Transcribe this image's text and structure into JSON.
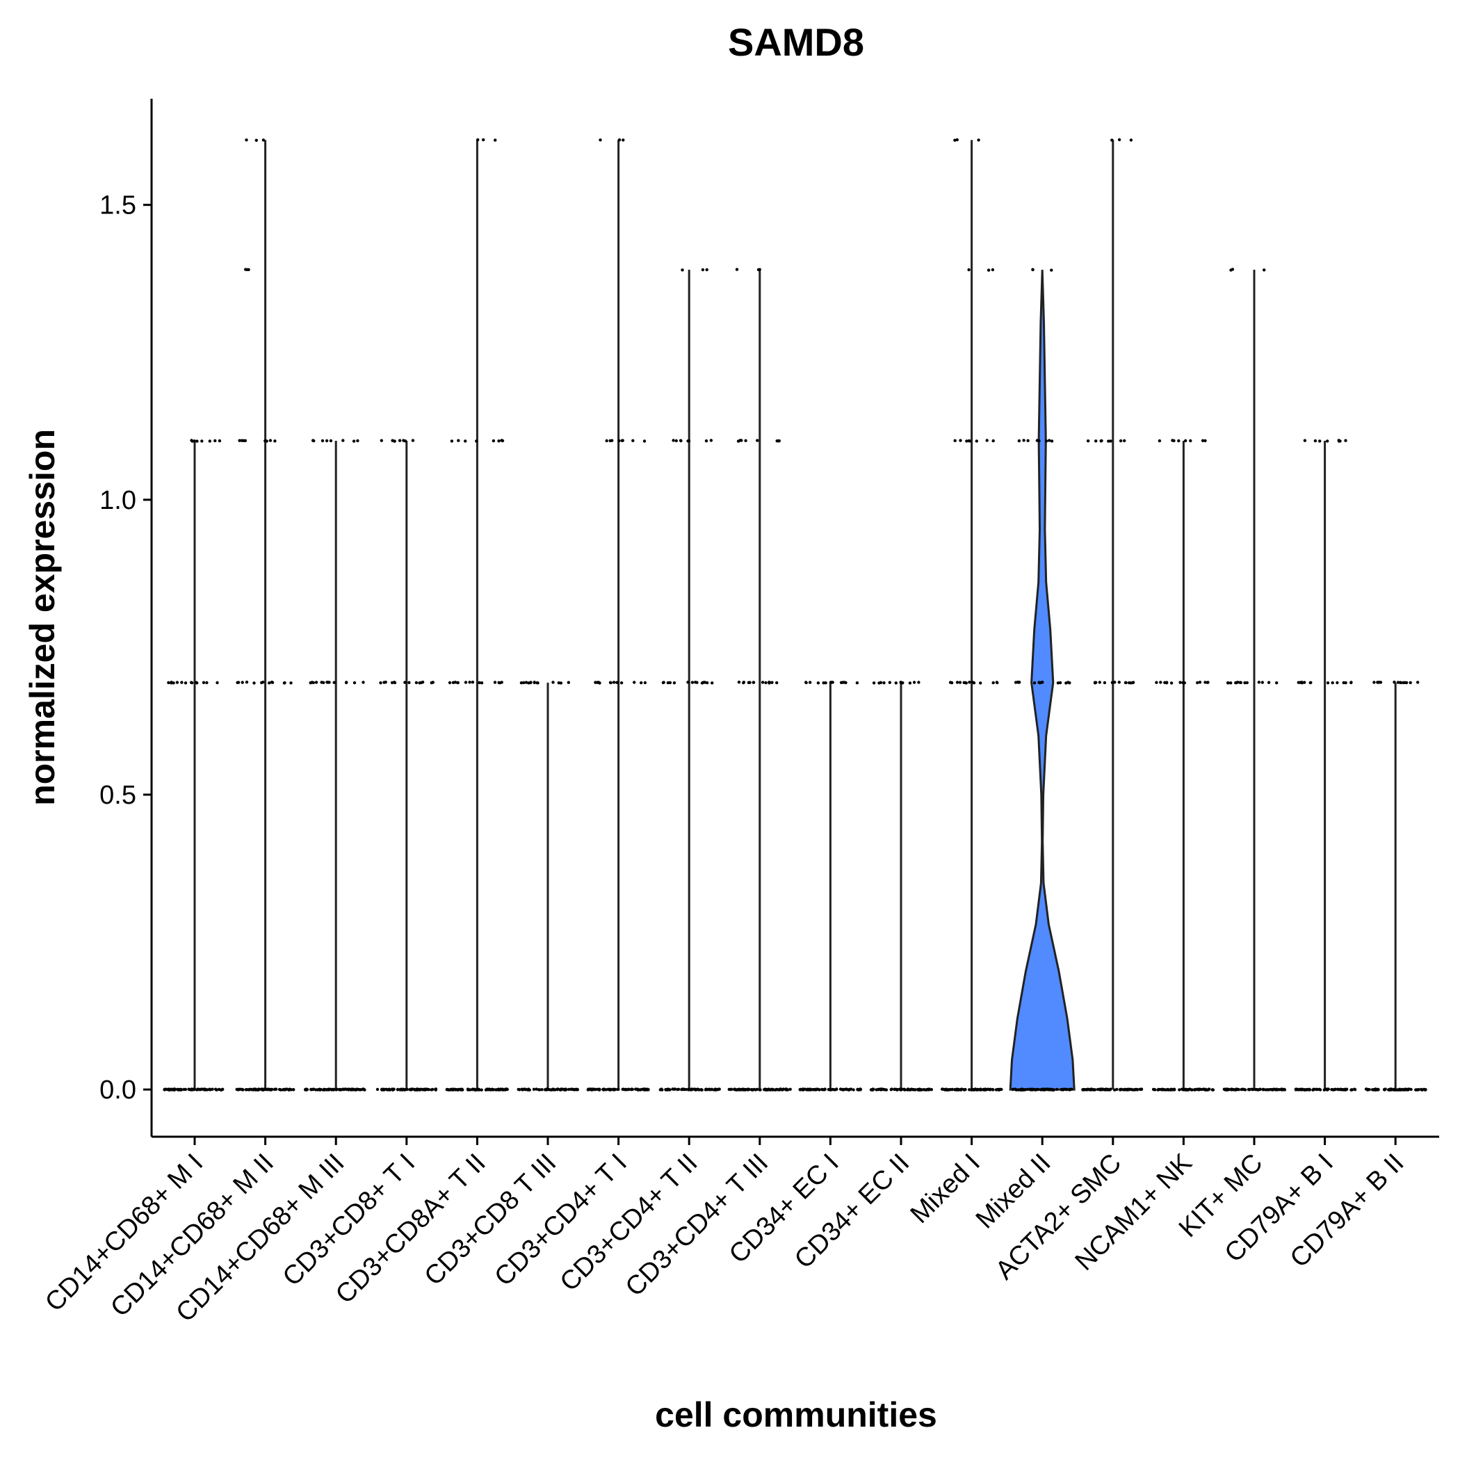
{
  "chart_data": {
    "type": "violin",
    "title": "SAMD8",
    "xlabel": "cell communities",
    "ylabel": "normalized expression",
    "ylim": [
      -0.08,
      1.68
    ],
    "y_ticks": [
      "0.0",
      "0.5",
      "1.0",
      "1.5"
    ],
    "y_tick_values": [
      0,
      0.5,
      1.0,
      1.5
    ],
    "grid": false,
    "legend": "none",
    "fill_color": "#518BFF",
    "categories": [
      "CD14+CD68+ M I",
      "CD14+CD68+ M II",
      "CD14+CD68+ M III",
      "CD3+CD8+ T I",
      "CD3+CD8A+ T II",
      "CD3+CD8 T III",
      "CD3+CD4+ T I",
      "CD3+CD4+ T II",
      "CD3+CD4+ T III",
      "CD34+ EC I",
      "CD34+ EC II",
      "Mixed I",
      "Mixed II",
      "ACTA2+ SMC",
      "NCAM1+ NK",
      "KIT+ MC",
      "CD79A+ B I",
      "CD79A+ B II"
    ],
    "violins": [
      {
        "category": "CD14+CD68+ M I",
        "max": 1.1,
        "levels": [
          0,
          0.69,
          1.1
        ]
      },
      {
        "category": "CD14+CD68+ M II",
        "max": 1.61,
        "levels": [
          0,
          0.69,
          1.1,
          1.39,
          1.61
        ]
      },
      {
        "category": "CD14+CD68+ M III",
        "max": 1.1,
        "levels": [
          0,
          0.69,
          1.1
        ]
      },
      {
        "category": "CD3+CD8+ T I",
        "max": 1.1,
        "levels": [
          0,
          0.69,
          1.1
        ]
      },
      {
        "category": "CD3+CD8A+ T II",
        "max": 1.61,
        "levels": [
          0,
          0.69,
          1.1,
          1.61
        ]
      },
      {
        "category": "CD3+CD8 T III",
        "max": 0.69,
        "levels": [
          0,
          0.69
        ]
      },
      {
        "category": "CD3+CD4+ T I",
        "max": 1.61,
        "levels": [
          0,
          0.69,
          1.1,
          1.61
        ]
      },
      {
        "category": "CD3+CD4+ T II",
        "max": 1.39,
        "levels": [
          0,
          0.69,
          1.1,
          1.39
        ]
      },
      {
        "category": "CD3+CD4+ T III",
        "max": 1.39,
        "levels": [
          0,
          0.69,
          1.1,
          1.39
        ]
      },
      {
        "category": "CD34+ EC I",
        "max": 0.69,
        "levels": [
          0,
          0.69
        ]
      },
      {
        "category": "CD34+ EC II",
        "max": 0.69,
        "levels": [
          0,
          0.69
        ]
      },
      {
        "category": "Mixed I",
        "max": 1.61,
        "levels": [
          0,
          0.69,
          1.1,
          1.39,
          1.61
        ]
      },
      {
        "category": "Mixed II",
        "max": 1.39,
        "levels": [
          0,
          0.69,
          1.1,
          1.39
        ]
      },
      {
        "category": "ACTA2+ SMC",
        "max": 1.61,
        "levels": [
          0,
          0.69,
          1.1,
          1.61
        ]
      },
      {
        "category": "NCAM1+ NK",
        "max": 1.1,
        "levels": [
          0,
          0.69,
          1.1
        ]
      },
      {
        "category": "KIT+ MC",
        "max": 1.39,
        "levels": [
          0,
          0.69,
          1.39
        ]
      },
      {
        "category": "CD79A+ B I",
        "max": 1.1,
        "levels": [
          0,
          0.69,
          1.1
        ]
      },
      {
        "category": "CD79A+ B II",
        "max": 0.69,
        "levels": [
          0,
          0.69
        ]
      }
    ],
    "density_profile": {
      "category": "Mixed II",
      "points": [
        {
          "y": 0.0,
          "w": 1.0
        },
        {
          "y": 0.05,
          "w": 0.95
        },
        {
          "y": 0.12,
          "w": 0.78
        },
        {
          "y": 0.2,
          "w": 0.52
        },
        {
          "y": 0.28,
          "w": 0.2
        },
        {
          "y": 0.35,
          "w": 0.04
        },
        {
          "y": 0.42,
          "w": 0.01
        },
        {
          "y": 0.5,
          "w": 0.03
        },
        {
          "y": 0.6,
          "w": 0.12
        },
        {
          "y": 0.69,
          "w": 0.34
        },
        {
          "y": 0.78,
          "w": 0.25
        },
        {
          "y": 0.86,
          "w": 0.12
        },
        {
          "y": 0.95,
          "w": 0.08
        },
        {
          "y": 1.05,
          "w": 0.1
        },
        {
          "y": 1.1,
          "w": 0.11
        },
        {
          "y": 1.2,
          "w": 0.08
        },
        {
          "y": 1.3,
          "w": 0.05
        },
        {
          "y": 1.39,
          "w": 0.0
        }
      ]
    }
  }
}
